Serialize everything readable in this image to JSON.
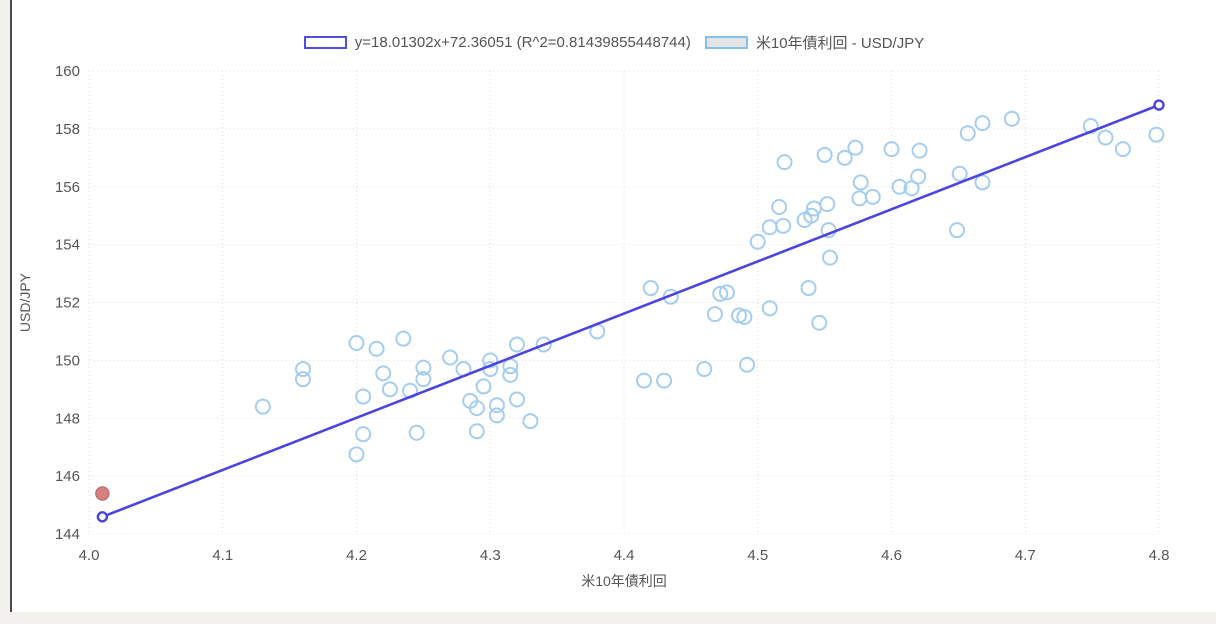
{
  "page": {
    "background": "#f3f1ed",
    "panel_background": "#ffffff",
    "panel_left_border": "#4a4a50"
  },
  "chart_data": {
    "type": "scatter",
    "title": "",
    "legend_entries": [
      {
        "label": "y=18.01302x+72.36051 (R^2=0.81439855448744)",
        "swatch": "regression-line",
        "border_color": "#5050e0",
        "fill_color": "#ffffff"
      },
      {
        "label": "米10年債利回 - USD/JPY",
        "swatch": "scatter-series",
        "border_color": "#85c1ea",
        "fill_color": "#e4e4e4"
      }
    ],
    "x_axis": {
      "label": "米10年債利回",
      "min": 4.0,
      "max": 4.8,
      "ticks": [
        "4.0",
        "4.1",
        "4.2",
        "4.3",
        "4.4",
        "4.5",
        "4.6",
        "4.7",
        "4.8"
      ],
      "grid": true
    },
    "y_axis": {
      "label": "USD/JPY",
      "min": 144,
      "max": 160,
      "ticks": [
        "144",
        "146",
        "148",
        "150",
        "152",
        "154",
        "156",
        "158",
        "160"
      ],
      "grid": true
    },
    "regression": {
      "equation": "y=18.01302x+72.36051",
      "slope": 18.01302,
      "intercept": 72.36051,
      "r_squared": 0.81439855448744,
      "x_start": 4.01,
      "x_end": 4.8,
      "line_color": "#4b44e0",
      "endpoint_marker": "open-circle"
    },
    "series": [
      {
        "name": "米10年債利回 - USD/JPY",
        "marker": "open-circle",
        "color": "#a5cdf0",
        "points": [
          [
            4.13,
            148.4
          ],
          [
            4.16,
            149.7
          ],
          [
            4.16,
            149.35
          ],
          [
            4.2,
            150.6
          ],
          [
            4.215,
            150.4
          ],
          [
            4.235,
            150.75
          ],
          [
            4.205,
            148.75
          ],
          [
            4.225,
            149.0
          ],
          [
            4.24,
            148.95
          ],
          [
            4.22,
            149.55
          ],
          [
            4.25,
            149.75
          ],
          [
            4.25,
            149.35
          ],
          [
            4.205,
            147.45
          ],
          [
            4.2,
            146.75
          ],
          [
            4.245,
            147.5
          ],
          [
            4.27,
            150.1
          ],
          [
            4.28,
            149.7
          ],
          [
            4.285,
            148.6
          ],
          [
            4.29,
            148.35
          ],
          [
            4.29,
            147.55
          ],
          [
            4.295,
            149.1
          ],
          [
            4.3,
            150.0
          ],
          [
            4.3,
            149.7
          ],
          [
            4.305,
            148.45
          ],
          [
            4.305,
            148.1
          ],
          [
            4.315,
            149.8
          ],
          [
            4.315,
            149.5
          ],
          [
            4.32,
            150.55
          ],
          [
            4.32,
            148.65
          ],
          [
            4.33,
            147.9
          ],
          [
            4.34,
            150.55
          ],
          [
            4.38,
            151.0
          ],
          [
            4.415,
            149.3
          ],
          [
            4.42,
            152.5
          ],
          [
            4.435,
            152.2
          ],
          [
            4.43,
            149.3
          ],
          [
            4.46,
            149.7
          ],
          [
            4.468,
            151.6
          ],
          [
            4.472,
            152.3
          ],
          [
            4.477,
            152.35
          ],
          [
            4.486,
            151.55
          ],
          [
            4.49,
            151.5
          ],
          [
            4.492,
            149.85
          ],
          [
            4.5,
            154.1
          ],
          [
            4.509,
            151.8
          ],
          [
            4.516,
            155.3
          ],
          [
            4.509,
            154.6
          ],
          [
            4.519,
            154.65
          ],
          [
            4.52,
            156.85
          ],
          [
            4.542,
            155.25
          ],
          [
            4.54,
            155.0
          ],
          [
            4.535,
            154.85
          ],
          [
            4.538,
            152.5
          ],
          [
            4.552,
            155.4
          ],
          [
            4.553,
            154.5
          ],
          [
            4.554,
            153.55
          ],
          [
            4.546,
            151.3
          ],
          [
            4.55,
            157.1
          ],
          [
            4.565,
            157.0
          ],
          [
            4.573,
            157.35
          ],
          [
            4.576,
            155.6
          ],
          [
            4.586,
            155.65
          ],
          [
            4.577,
            156.15
          ],
          [
            4.6,
            157.3
          ],
          [
            4.606,
            156.0
          ],
          [
            4.615,
            155.95
          ],
          [
            4.62,
            156.35
          ],
          [
            4.621,
            157.25
          ],
          [
            4.651,
            156.45
          ],
          [
            4.649,
            154.5
          ],
          [
            4.657,
            157.85
          ],
          [
            4.668,
            158.2
          ],
          [
            4.668,
            156.15
          ],
          [
            4.69,
            158.35
          ],
          [
            4.749,
            158.1
          ],
          [
            4.76,
            157.7
          ],
          [
            4.773,
            157.3
          ],
          [
            4.798,
            157.8
          ]
        ]
      },
      {
        "name": "highlight-point",
        "marker": "filled-circle",
        "color": "#d5807f",
        "stroke_color": "#c27170",
        "points": [
          [
            4.01,
            145.4
          ]
        ]
      }
    ],
    "colors": {
      "grid": "#e2dfd9",
      "tick_text": "#565656",
      "axis_title_text": "#565656",
      "regression_line": "#4b44e0",
      "scatter_stroke": "#a5cdf0"
    }
  }
}
